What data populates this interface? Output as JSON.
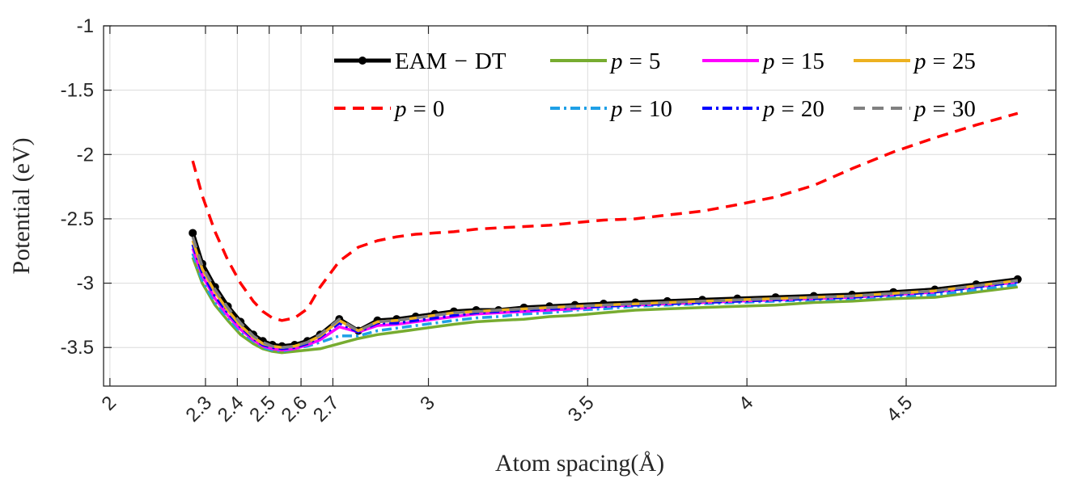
{
  "chart_data": {
    "type": "line",
    "title": "",
    "xlabel": "Atom spacing(Å)",
    "ylabel": "Potential (eV)",
    "xlim": [
      1.98,
      4.97
    ],
    "ylim": [
      -3.8,
      -1.0
    ],
    "grid": true,
    "legend_position": "top-right, inside, 2 rows x 4 columns",
    "x_ticks": [
      2,
      2.3,
      2.4,
      2.5,
      2.6,
      2.7,
      3,
      3.5,
      4,
      4.5
    ],
    "x_tick_labels": [
      "2",
      "2.3",
      "2.4",
      "2.5",
      "2.6",
      "2.7",
      "3",
      "3.5",
      "4",
      "4.5"
    ],
    "y_ticks": [
      -1,
      -1.5,
      -2,
      -2.5,
      -3,
      -3.5
    ],
    "y_tick_labels": [
      "-1",
      "-1.5",
      "-2",
      "-2.5",
      "-3",
      "-3.5"
    ],
    "x": [
      2.26,
      2.29,
      2.33,
      2.37,
      2.41,
      2.45,
      2.48,
      2.51,
      2.54,
      2.58,
      2.62,
      2.66,
      2.72,
      2.78,
      2.84,
      2.9,
      2.96,
      3.02,
      3.08,
      3.15,
      3.22,
      3.3,
      3.38,
      3.46,
      3.55,
      3.65,
      3.75,
      3.86,
      3.97,
      4.09,
      4.21,
      4.33,
      4.46,
      4.59,
      4.72,
      4.85
    ],
    "series": [
      {
        "name": "EAM − DT",
        "legend_text": "EAM",
        "legend_text2": "DT",
        "color": "#000000",
        "dash": "solid",
        "markers": true,
        "values": [
          -2.61,
          -2.85,
          -3.03,
          -3.18,
          -3.3,
          -3.4,
          -3.45,
          -3.48,
          -3.49,
          -3.48,
          -3.45,
          -3.4,
          -3.28,
          -3.37,
          -3.29,
          -3.28,
          -3.26,
          -3.24,
          -3.22,
          -3.21,
          -3.21,
          -3.19,
          -3.18,
          -3.17,
          -3.16,
          -3.15,
          -3.14,
          -3.13,
          -3.12,
          -3.11,
          -3.1,
          -3.09,
          -3.07,
          -3.05,
          -3.01,
          -2.97
        ]
      },
      {
        "name": "p = 0",
        "legend_text": "p = 0",
        "color": "#ff0000",
        "dash": "dashed",
        "markers": false,
        "values": [
          -2.05,
          -2.32,
          -2.6,
          -2.82,
          -3.0,
          -3.14,
          -3.22,
          -3.27,
          -3.29,
          -3.27,
          -3.2,
          -3.03,
          -2.83,
          -2.72,
          -2.67,
          -2.64,
          -2.62,
          -2.61,
          -2.6,
          -2.58,
          -2.57,
          -2.56,
          -2.55,
          -2.53,
          -2.51,
          -2.5,
          -2.47,
          -2.44,
          -2.39,
          -2.33,
          -2.24,
          -2.11,
          -1.98,
          -1.87,
          -1.77,
          -1.68
        ]
      },
      {
        "name": "p = 5",
        "legend_text": "p = 5",
        "color": "#77ac30",
        "dash": "solid",
        "markers": false,
        "values": [
          -2.8,
          -3.0,
          -3.17,
          -3.29,
          -3.4,
          -3.47,
          -3.51,
          -3.53,
          -3.54,
          -3.53,
          -3.52,
          -3.51,
          -3.47,
          -3.43,
          -3.4,
          -3.38,
          -3.36,
          -3.34,
          -3.32,
          -3.3,
          -3.29,
          -3.28,
          -3.26,
          -3.25,
          -3.23,
          -3.21,
          -3.2,
          -3.19,
          -3.18,
          -3.17,
          -3.15,
          -3.14,
          -3.12,
          -3.11,
          -3.07,
          -3.03
        ]
      },
      {
        "name": "p = 10",
        "legend_text": "p = 10",
        "color": "#1ea0e6",
        "dash": "dashdot",
        "markers": false,
        "values": [
          -2.77,
          -2.98,
          -3.15,
          -3.27,
          -3.38,
          -3.45,
          -3.5,
          -3.52,
          -3.53,
          -3.51,
          -3.49,
          -3.46,
          -3.41,
          -3.41,
          -3.37,
          -3.35,
          -3.33,
          -3.31,
          -3.29,
          -3.27,
          -3.26,
          -3.24,
          -3.23,
          -3.21,
          -3.2,
          -3.18,
          -3.17,
          -3.16,
          -3.15,
          -3.14,
          -3.13,
          -3.12,
          -3.1,
          -3.09,
          -3.05,
          -3.01
        ]
      },
      {
        "name": "p = 15",
        "legend_text": "p = 15",
        "color": "#ff00ff",
        "dash": "solid",
        "markers": false,
        "values": [
          -2.73,
          -2.94,
          -3.12,
          -3.25,
          -3.36,
          -3.44,
          -3.49,
          -3.51,
          -3.52,
          -3.51,
          -3.48,
          -3.44,
          -3.34,
          -3.38,
          -3.33,
          -3.32,
          -3.3,
          -3.28,
          -3.26,
          -3.24,
          -3.23,
          -3.22,
          -3.21,
          -3.2,
          -3.18,
          -3.17,
          -3.16,
          -3.15,
          -3.14,
          -3.13,
          -3.12,
          -3.11,
          -3.09,
          -3.07,
          -3.03,
          -2.99
        ]
      },
      {
        "name": "p = 20",
        "legend_text": "p = 20",
        "color": "#0000ff",
        "dash": "dashdot",
        "markers": false,
        "values": [
          -2.7,
          -2.92,
          -3.1,
          -3.23,
          -3.34,
          -3.43,
          -3.48,
          -3.5,
          -3.51,
          -3.5,
          -3.47,
          -3.42,
          -3.31,
          -3.38,
          -3.31,
          -3.31,
          -3.29,
          -3.27,
          -3.25,
          -3.23,
          -3.22,
          -3.21,
          -3.2,
          -3.19,
          -3.18,
          -3.17,
          -3.16,
          -3.15,
          -3.14,
          -3.13,
          -3.12,
          -3.11,
          -3.09,
          -3.07,
          -3.03,
          -2.99
        ]
      },
      {
        "name": "p = 25",
        "legend_text": "p = 25",
        "color": "#edb120",
        "dash": "solid",
        "markers": false,
        "values": [
          -2.67,
          -2.89,
          -3.07,
          -3.21,
          -3.33,
          -3.42,
          -3.47,
          -3.49,
          -3.5,
          -3.49,
          -3.46,
          -3.41,
          -3.29,
          -3.37,
          -3.3,
          -3.29,
          -3.27,
          -3.25,
          -3.23,
          -3.22,
          -3.21,
          -3.2,
          -3.19,
          -3.18,
          -3.17,
          -3.16,
          -3.15,
          -3.14,
          -3.13,
          -3.12,
          -3.11,
          -3.1,
          -3.08,
          -3.06,
          -3.02,
          -2.98
        ]
      },
      {
        "name": "p = 30",
        "legend_text": "p = 30",
        "color": "#808080",
        "dash": "dashed",
        "markers": false,
        "values": [
          -2.64,
          -2.87,
          -3.05,
          -3.19,
          -3.31,
          -3.41,
          -3.46,
          -3.49,
          -3.5,
          -3.49,
          -3.46,
          -3.4,
          -3.28,
          -3.37,
          -3.3,
          -3.29,
          -3.27,
          -3.25,
          -3.23,
          -3.22,
          -3.21,
          -3.2,
          -3.19,
          -3.18,
          -3.17,
          -3.16,
          -3.15,
          -3.14,
          -3.13,
          -3.12,
          -3.11,
          -3.1,
          -3.08,
          -3.06,
          -3.02,
          -2.98
        ]
      }
    ],
    "legend_order": [
      0,
      2,
      4,
      6,
      1,
      3,
      5,
      7
    ]
  }
}
